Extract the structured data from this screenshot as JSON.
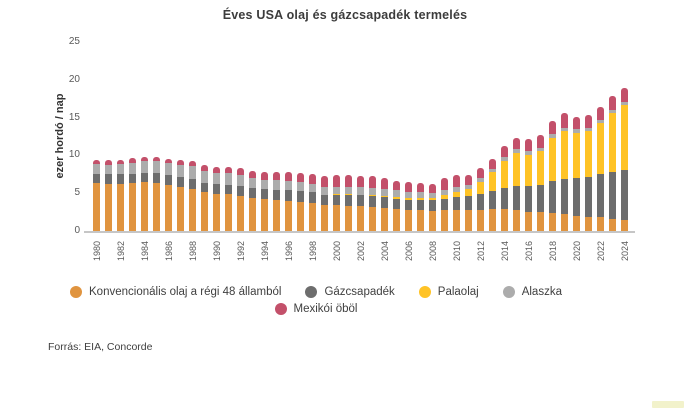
{
  "title": "Éves USA olaj és gázcsapadék termelés",
  "source": "Forrás: EIA, Concorde",
  "y_axis": {
    "label": "ezer hordó / nap",
    "ticks": [
      "0",
      "5",
      "10",
      "15",
      "20",
      "25"
    ]
  },
  "legend": {
    "row1_series": [
      0,
      1,
      2,
      3
    ],
    "row2_series": [
      4
    ]
  },
  "colors": {
    "baseline": "#c6c6c6",
    "axis_text": "#595959",
    "title_text": "#3c3c3c"
  },
  "chart_data": {
    "type": "bar",
    "stacked": true,
    "title": "Éves USA olaj és gázcsapadék termelés",
    "ylabel": "ezer hordó / nap",
    "xlabel": "",
    "ylim": [
      0,
      25
    ],
    "grid": false,
    "legend_position": "bottom",
    "x": [
      1980,
      1981,
      1982,
      1983,
      1984,
      1985,
      1986,
      1987,
      1988,
      1989,
      1990,
      1991,
      1992,
      1993,
      1994,
      1995,
      1996,
      1997,
      1998,
      1999,
      2000,
      2001,
      2002,
      2003,
      2004,
      2005,
      2006,
      2007,
      2008,
      2009,
      2010,
      2011,
      2012,
      2013,
      2014,
      2015,
      2016,
      2017,
      2018,
      2019,
      2020,
      2021,
      2022,
      2023,
      2024
    ],
    "x_tick_labels": [
      "1980",
      "1982",
      "1984",
      "1986",
      "1988",
      "1990",
      "1992",
      "1994",
      "1996",
      "1998",
      "2000",
      "2002",
      "2004",
      "2006",
      "2008",
      "2010",
      "2012",
      "2014",
      "2016",
      "2018",
      "2020",
      "2022",
      "2024"
    ],
    "series": [
      {
        "name": "Konvencionális olaj a régi 48 államból",
        "color": "#e0943f",
        "values": [
          6.3,
          6.25,
          6.25,
          6.3,
          6.45,
          6.4,
          6.1,
          5.85,
          5.6,
          5.2,
          4.9,
          4.85,
          4.65,
          4.4,
          4.2,
          4.1,
          4.0,
          3.9,
          3.75,
          3.4,
          3.4,
          3.35,
          3.3,
          3.2,
          3.05,
          2.9,
          2.8,
          2.75,
          2.65,
          2.75,
          2.8,
          2.75,
          2.8,
          2.85,
          2.9,
          2.8,
          2.5,
          2.45,
          2.4,
          2.3,
          2.0,
          1.9,
          1.8,
          1.6,
          1.5
        ]
      },
      {
        "name": "Gázcsapadék",
        "color": "#6d6d6d",
        "values": [
          1.25,
          1.25,
          1.25,
          1.25,
          1.25,
          1.25,
          1.25,
          1.25,
          1.25,
          1.2,
          1.3,
          1.3,
          1.3,
          1.3,
          1.3,
          1.35,
          1.4,
          1.4,
          1.4,
          1.4,
          1.4,
          1.4,
          1.4,
          1.4,
          1.4,
          1.4,
          1.35,
          1.35,
          1.4,
          1.55,
          1.7,
          1.9,
          2.15,
          2.4,
          2.8,
          3.2,
          3.4,
          3.6,
          4.2,
          4.6,
          5.0,
          5.3,
          5.7,
          6.2,
          6.6
        ]
      },
      {
        "name": "Palaolaj",
        "color": "#ffc326",
        "values": [
          0,
          0,
          0,
          0,
          0,
          0,
          0,
          0,
          0,
          0,
          0,
          0,
          0,
          0,
          0,
          0,
          0,
          0,
          0,
          0,
          0.1,
          0.1,
          0.12,
          0.15,
          0.18,
          0.22,
          0.25,
          0.3,
          0.35,
          0.5,
          0.7,
          0.95,
          1.6,
          2.5,
          3.6,
          4.3,
          4.2,
          4.5,
          5.7,
          6.3,
          6.0,
          6.0,
          6.8,
          7.8,
          8.6
        ]
      },
      {
        "name": "Alaszka",
        "color": "#acacac",
        "values": [
          1.3,
          1.3,
          1.35,
          1.4,
          1.5,
          1.6,
          1.6,
          1.65,
          1.7,
          1.6,
          1.5,
          1.5,
          1.45,
          1.35,
          1.3,
          1.25,
          1.2,
          1.15,
          1.1,
          1.05,
          0.95,
          0.95,
          0.95,
          0.95,
          0.9,
          0.85,
          0.75,
          0.7,
          0.65,
          0.65,
          0.6,
          0.55,
          0.5,
          0.5,
          0.5,
          0.5,
          0.5,
          0.5,
          0.5,
          0.45,
          0.45,
          0.45,
          0.4,
          0.4,
          0.4
        ]
      },
      {
        "name": "Mexikói öböl",
        "color": "#c3506a",
        "values": [
          0.6,
          0.6,
          0.6,
          0.65,
          0.65,
          0.6,
          0.6,
          0.6,
          0.65,
          0.7,
          0.8,
          0.85,
          0.9,
          0.95,
          1.0,
          1.1,
          1.15,
          1.25,
          1.3,
          1.4,
          1.5,
          1.55,
          1.55,
          1.55,
          1.45,
          1.3,
          1.3,
          1.3,
          1.15,
          1.55,
          1.55,
          1.3,
          1.25,
          1.25,
          1.4,
          1.5,
          1.6,
          1.65,
          1.8,
          1.9,
          1.65,
          1.7,
          1.75,
          1.85,
          1.85
        ]
      }
    ]
  }
}
